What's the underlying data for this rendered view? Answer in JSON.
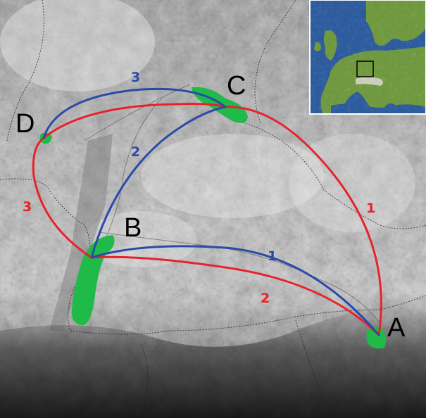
{
  "colors": {
    "red_routes": "#e8222b",
    "blue_routes": "#2b4aa8",
    "areas": "#1fba48",
    "terrain_light": "#dcdcdc",
    "terrain_dark": "#2a2a2a",
    "inset_sea": "#2a5aa0",
    "inset_land": "#6f9a3c"
  },
  "points": {
    "A": "A",
    "B": "B",
    "C": "C",
    "D": "D"
  },
  "routes": {
    "red": [
      "1",
      "2",
      "3"
    ],
    "blue": [
      "1",
      "2",
      "3"
    ]
  },
  "inset": {
    "frame_icon": "square-frame",
    "content": "europe-relief-map"
  }
}
